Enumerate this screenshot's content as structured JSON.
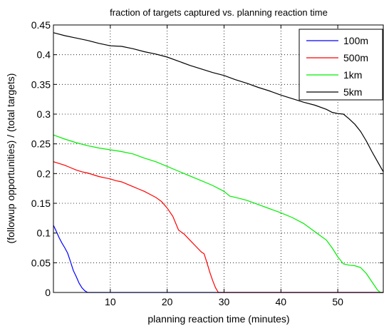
{
  "chart_data": {
    "type": "line",
    "title": "fraction of targets captured vs. planning reaction time",
    "xlabel": "planning reaction time (minutes)",
    "ylabel": "(followup opportunities) / (total targets)",
    "xlim": [
      0,
      58
    ],
    "ylim": [
      0,
      0.45
    ],
    "x_ticks": [
      10,
      20,
      30,
      40,
      50
    ],
    "y_ticks": [
      0,
      0.05,
      0.1,
      0.15,
      0.2,
      0.25,
      0.3,
      0.35,
      0.4,
      0.45
    ],
    "y_tick_labels": [
      "0",
      "0.05",
      "0.1",
      "0.15",
      "0.2",
      "0.25",
      "0.3",
      "0.35",
      "0.4",
      "0.45"
    ],
    "grid": true,
    "legend_position": "top-right",
    "series": [
      {
        "name": "100m",
        "color": "#0000ff",
        "points": [
          [
            0,
            0.113
          ],
          [
            0.5,
            0.103
          ],
          [
            1,
            0.092
          ],
          [
            1.5,
            0.083
          ],
          [
            2,
            0.075
          ],
          [
            2.5,
            0.066
          ],
          [
            3,
            0.052
          ],
          [
            3.5,
            0.037
          ],
          [
            4,
            0.027
          ],
          [
            4.5,
            0.016
          ],
          [
            5,
            0.008
          ],
          [
            5.5,
            0.003
          ],
          [
            6,
            0
          ],
          [
            58,
            0
          ]
        ]
      },
      {
        "name": "500m",
        "color": "#ff0000",
        "points": [
          [
            0,
            0.22
          ],
          [
            1,
            0.217
          ],
          [
            2,
            0.214
          ],
          [
            3,
            0.21
          ],
          [
            4,
            0.206
          ],
          [
            5,
            0.203
          ],
          [
            6,
            0.201
          ],
          [
            7,
            0.198
          ],
          [
            8,
            0.195
          ],
          [
            9,
            0.193
          ],
          [
            10,
            0.191
          ],
          [
            11,
            0.188
          ],
          [
            12,
            0.186
          ],
          [
            13,
            0.182
          ],
          [
            14,
            0.178
          ],
          [
            15,
            0.174
          ],
          [
            16,
            0.17
          ],
          [
            17,
            0.165
          ],
          [
            18,
            0.16
          ],
          [
            19,
            0.153
          ],
          [
            20,
            0.142
          ],
          [
            21,
            0.128
          ],
          [
            22,
            0.105
          ],
          [
            23,
            0.098
          ],
          [
            24,
            0.088
          ],
          [
            25,
            0.078
          ],
          [
            26,
            0.068
          ],
          [
            26.5,
            0.065
          ],
          [
            27,
            0.05
          ],
          [
            27.5,
            0.034
          ],
          [
            28,
            0.02
          ],
          [
            28.5,
            0.008
          ],
          [
            29,
            0
          ],
          [
            58,
            0
          ]
        ]
      },
      {
        "name": "1km",
        "color": "#00ee00",
        "points": [
          [
            0,
            0.265
          ],
          [
            2,
            0.258
          ],
          [
            4,
            0.252
          ],
          [
            6,
            0.247
          ],
          [
            8,
            0.243
          ],
          [
            10,
            0.24
          ],
          [
            12,
            0.237
          ],
          [
            14,
            0.233
          ],
          [
            16,
            0.226
          ],
          [
            18,
            0.22
          ],
          [
            20,
            0.212
          ],
          [
            22,
            0.204
          ],
          [
            24,
            0.196
          ],
          [
            26,
            0.188
          ],
          [
            28,
            0.18
          ],
          [
            30,
            0.17
          ],
          [
            31,
            0.162
          ],
          [
            32,
            0.16
          ],
          [
            34,
            0.155
          ],
          [
            36,
            0.148
          ],
          [
            38,
            0.141
          ],
          [
            40,
            0.134
          ],
          [
            42,
            0.126
          ],
          [
            44,
            0.116
          ],
          [
            46,
            0.102
          ],
          [
            48,
            0.088
          ],
          [
            49,
            0.075
          ],
          [
            50,
            0.06
          ],
          [
            51,
            0.048
          ],
          [
            52,
            0.046
          ],
          [
            53,
            0.045
          ],
          [
            54,
            0.042
          ],
          [
            55,
            0.032
          ],
          [
            56,
            0.018
          ],
          [
            57,
            0.004
          ],
          [
            57.5,
            0
          ],
          [
            58,
            0
          ]
        ]
      },
      {
        "name": "5km",
        "color": "#000000",
        "points": [
          [
            0,
            0.437
          ],
          [
            2,
            0.432
          ],
          [
            4,
            0.428
          ],
          [
            6,
            0.424
          ],
          [
            8,
            0.419
          ],
          [
            10,
            0.415
          ],
          [
            12,
            0.414
          ],
          [
            14,
            0.41
          ],
          [
            16,
            0.405
          ],
          [
            18,
            0.401
          ],
          [
            20,
            0.396
          ],
          [
            22,
            0.389
          ],
          [
            24,
            0.382
          ],
          [
            26,
            0.376
          ],
          [
            28,
            0.37
          ],
          [
            30,
            0.365
          ],
          [
            32,
            0.358
          ],
          [
            34,
            0.352
          ],
          [
            36,
            0.345
          ],
          [
            38,
            0.339
          ],
          [
            40,
            0.332
          ],
          [
            42,
            0.326
          ],
          [
            44,
            0.32
          ],
          [
            46,
            0.315
          ],
          [
            48,
            0.308
          ],
          [
            49,
            0.303
          ],
          [
            50,
            0.301
          ],
          [
            51,
            0.3
          ],
          [
            52,
            0.292
          ],
          [
            53,
            0.283
          ],
          [
            54,
            0.271
          ],
          [
            55,
            0.255
          ],
          [
            56,
            0.237
          ],
          [
            57,
            0.22
          ],
          [
            58,
            0.203
          ]
        ]
      }
    ]
  }
}
